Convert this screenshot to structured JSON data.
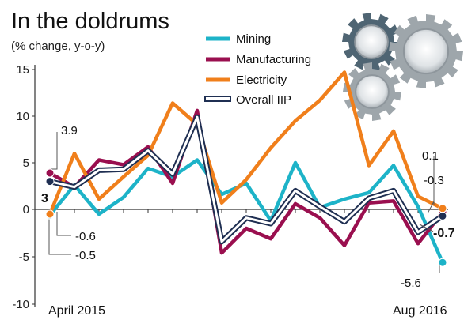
{
  "chart_data": {
    "type": "line",
    "title": "In the doldrums",
    "subtitle": "(% change, y-o-y)",
    "ylim": [
      -10,
      15
    ],
    "yticks": [
      "15",
      "10",
      "5",
      "0",
      "-5",
      "-10"
    ],
    "x_labels": {
      "start": "April 2015",
      "end": "Aug 2016"
    },
    "x": [
      "Apr 2015",
      "May 2015",
      "Jun 2015",
      "Jul 2015",
      "Aug 2015",
      "Sep 2015",
      "Oct 2015",
      "Nov 2015",
      "Dec 2015",
      "Jan 2016",
      "Feb 2016",
      "Mar 2016",
      "Apr 2016",
      "May 2016",
      "Jun 2016",
      "Jul 2016",
      "Aug 2016"
    ],
    "series": [
      {
        "name": "Mining",
        "color": "#1db3c8",
        "values": [
          -0.6,
          2.6,
          -0.5,
          1.3,
          4.4,
          3.5,
          5.3,
          1.6,
          2.8,
          -1.2,
          5.0,
          0.2,
          1.1,
          1.8,
          4.7,
          0.3,
          -5.6
        ]
      },
      {
        "name": "Manufacturing",
        "color": "#9a0f4f",
        "values": [
          3.9,
          2.4,
          5.3,
          4.8,
          6.7,
          2.8,
          10.6,
          -4.6,
          -2.0,
          -3.1,
          0.6,
          -0.9,
          -3.8,
          0.7,
          0.9,
          -3.6,
          -0.3
        ]
      },
      {
        "name": "Electricity",
        "color": "#f07f1b",
        "values": [
          -0.5,
          6.0,
          1.1,
          3.5,
          5.8,
          11.4,
          9.1,
          0.7,
          3.2,
          6.6,
          9.5,
          11.7,
          14.7,
          4.7,
          8.4,
          1.4,
          0.1
        ]
      },
      {
        "name": "Overall IIP",
        "color": "#ffffff",
        "outline": "#1f2f52",
        "values": [
          3.0,
          2.4,
          4.2,
          4.3,
          6.3,
          3.8,
          9.9,
          -3.4,
          -0.9,
          -1.5,
          2.0,
          0.3,
          -1.3,
          1.2,
          2.0,
          -2.4,
          -0.7
        ]
      }
    ],
    "annotations": [
      {
        "text": "3.9"
      },
      {
        "text": "3"
      },
      {
        "text": "-0.6"
      },
      {
        "text": "-0.5"
      },
      {
        "text": "0.1"
      },
      {
        "text": "-0.3"
      },
      {
        "text": "-0.7"
      },
      {
        "text": "-5.6"
      }
    ],
    "grid": false,
    "legend": "top-center"
  },
  "decoration": {
    "icons": [
      "gear-icon",
      "gear-icon",
      "gear-icon"
    ]
  }
}
